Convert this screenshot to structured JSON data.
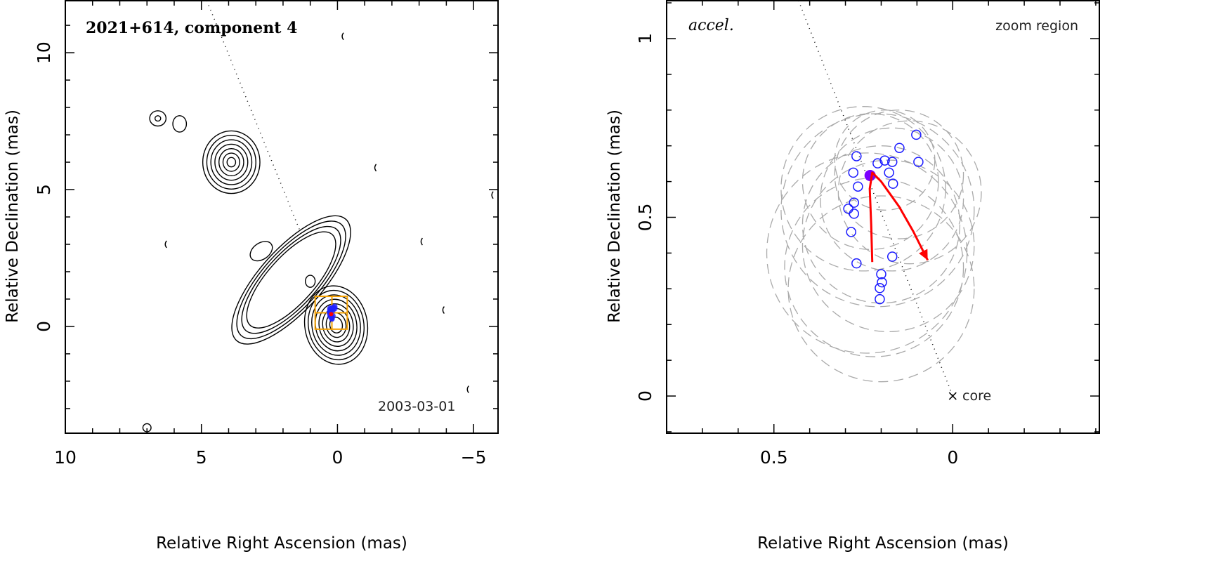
{
  "chart_data": [
    {
      "type": "contour",
      "title": "2021+614, component 4",
      "epoch": "2003-03-01",
      "xlabel": "Relative Right Ascension (mas)",
      "ylabel": "Relative Declination (mas)",
      "xlim": [
        10,
        -5.9
      ],
      "ylim": [
        -3.9,
        11.9
      ],
      "xticks": [
        {
          "v": 10,
          "label": "10"
        },
        {
          "v": 5,
          "label": "5"
        },
        {
          "v": 0,
          "label": "0"
        },
        {
          "v": -5,
          "label": "−5"
        }
      ],
      "yticks": [
        {
          "v": 10,
          "label": "10"
        },
        {
          "v": 5,
          "label": "5"
        },
        {
          "v": 0,
          "label": "0"
        }
      ],
      "x_minor_step": 1,
      "y_minor_step": 1,
      "jet_axis": [
        [
          4.8,
          11.9
        ],
        [
          1.3,
          3.3
        ]
      ],
      "zoom_region": {
        "x": [
          0.82,
          -0.36
        ],
        "y": [
          -0.1,
          1.1
        ],
        "color": "#f5a000"
      },
      "component_color": "#2020ff"
    },
    {
      "type": "scatter",
      "label": "accel.",
      "note": "zoom region",
      "core_label": "core",
      "xlabel": "Relative Right Ascension (mas)",
      "ylabel": "Relative Declination (mas)",
      "xlim": [
        0.8,
        -0.41
      ],
      "ylim": [
        -0.104,
        1.106
      ],
      "xticks": [
        {
          "v": 0.5,
          "label": "0.5"
        },
        {
          "v": 0,
          "label": "0"
        }
      ],
      "yticks": [
        {
          "v": 1,
          "label": "1"
        },
        {
          "v": 0.5,
          "label": "0.5"
        },
        {
          "v": 0,
          "label": "0"
        }
      ],
      "x_minor_step": 0.1,
      "y_minor_step": 0.1,
      "core": [
        0,
        0
      ],
      "jet_axis": [
        [
          0.431,
          1.106
        ],
        [
          0,
          0
        ]
      ],
      "positions": [
        [
          0.269,
          0.671
        ],
        [
          0.21,
          0.651
        ],
        [
          0.19,
          0.659
        ],
        [
          0.169,
          0.655
        ],
        [
          0.149,
          0.694
        ],
        [
          0.102,
          0.731
        ],
        [
          0.096,
          0.655
        ],
        [
          0.178,
          0.625
        ],
        [
          0.167,
          0.594
        ],
        [
          0.278,
          0.625
        ],
        [
          0.265,
          0.586
        ],
        [
          0.276,
          0.541
        ],
        [
          0.292,
          0.524
        ],
        [
          0.276,
          0.51
        ],
        [
          0.284,
          0.459
        ],
        [
          0.269,
          0.371
        ],
        [
          0.169,
          0.39
        ],
        [
          0.2,
          0.341
        ],
        [
          0.198,
          0.318
        ],
        [
          0.204,
          0.302
        ],
        [
          0.204,
          0.271
        ]
      ],
      "highlight_position": [
        0.231,
        0.617
      ],
      "component_sizes": [
        [
          0.2,
          0.3,
          0.26
        ],
        [
          0.22,
          0.36,
          0.25
        ],
        [
          0.18,
          0.42,
          0.24
        ],
        [
          0.24,
          0.4,
          0.28
        ],
        [
          0.2,
          0.48,
          0.22
        ],
        [
          0.17,
          0.55,
          0.2
        ],
        [
          0.23,
          0.6,
          0.19
        ],
        [
          0.15,
          0.62,
          0.18
        ],
        [
          0.19,
          0.66,
          0.14
        ],
        [
          0.25,
          0.58,
          0.23
        ],
        [
          0.12,
          0.57,
          0.2
        ],
        [
          0.21,
          0.52,
          0.27
        ]
      ],
      "acceleration_track": [
        [
          0.225,
          0.375
        ],
        [
          0.228,
          0.48
        ],
        [
          0.232,
          0.58
        ],
        [
          0.225,
          0.625
        ],
        [
          0.2,
          0.6
        ],
        [
          0.15,
          0.53
        ],
        [
          0.11,
          0.46
        ],
        [
          0.07,
          0.38
        ]
      ],
      "colors": {
        "positions": "#1a1aff",
        "highlight": "#7a00ff",
        "track": "#ff0000",
        "sizes": "#aaaaaa"
      }
    }
  ]
}
